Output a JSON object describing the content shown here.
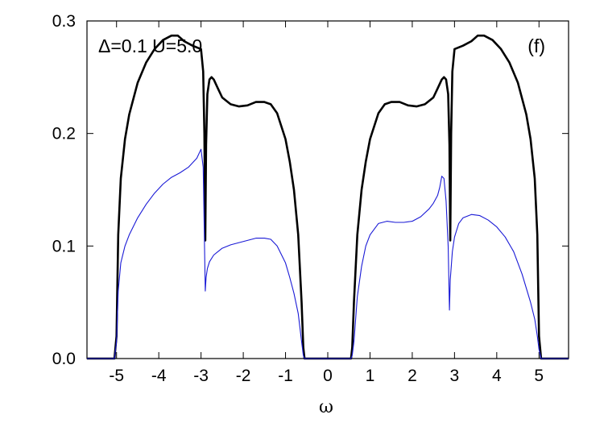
{
  "chart_data": {
    "type": "line",
    "xlabel": "ω",
    "ylabel": "",
    "xlim": [
      -5.7,
      5.7
    ],
    "ylim": [
      0.0,
      0.3
    ],
    "grid": false,
    "legend": "none",
    "annotation_left": "Δ=0.1  U=5.0",
    "annotation_right": "(f)",
    "x_ticks": [
      -5,
      -4,
      -3,
      -2,
      -1,
      0,
      1,
      2,
      3,
      4,
      5
    ],
    "x_tick_labels": [
      "-5",
      "-4",
      "-3",
      "-2",
      "-1",
      "0",
      "1",
      "2",
      "3",
      "4",
      "5"
    ],
    "y_ticks": [
      0.0,
      0.1,
      0.2,
      0.3
    ],
    "y_tick_labels": [
      "0.0",
      "0.1",
      "0.2",
      "0.3"
    ],
    "series": [
      {
        "color": "#000000",
        "x": [
          -5.7,
          -5.05,
          -5.0,
          -4.96,
          -4.9,
          -4.8,
          -4.7,
          -4.5,
          -4.3,
          -4.1,
          -3.9,
          -3.7,
          -3.55,
          -3.4,
          -3.2,
          -3.0,
          -2.95,
          -2.92,
          -2.9,
          -2.88,
          -2.85,
          -2.8,
          -2.75,
          -2.7,
          -2.6,
          -2.5,
          -2.3,
          -2.1,
          -1.9,
          -1.7,
          -1.5,
          -1.35,
          -1.2,
          -1.0,
          -0.9,
          -0.8,
          -0.7,
          -0.62,
          -0.58,
          -0.55,
          -0.5,
          0.5,
          0.55,
          0.58,
          0.62,
          0.7,
          0.8,
          0.9,
          1.0,
          1.2,
          1.35,
          1.5,
          1.7,
          1.9,
          2.1,
          2.3,
          2.5,
          2.6,
          2.7,
          2.75,
          2.8,
          2.85,
          2.88,
          2.9,
          2.92,
          2.95,
          3.0,
          3.2,
          3.4,
          3.55,
          3.7,
          3.9,
          4.1,
          4.3,
          4.5,
          4.7,
          4.8,
          4.9,
          4.96,
          5.0,
          5.05,
          5.7
        ],
        "y": [
          0.0,
          0.0,
          0.02,
          0.11,
          0.16,
          0.195,
          0.217,
          0.245,
          0.263,
          0.275,
          0.283,
          0.287,
          0.287,
          0.282,
          0.278,
          0.275,
          0.255,
          0.2,
          0.105,
          0.19,
          0.235,
          0.248,
          0.25,
          0.248,
          0.24,
          0.232,
          0.226,
          0.224,
          0.225,
          0.228,
          0.228,
          0.226,
          0.218,
          0.195,
          0.175,
          0.15,
          0.11,
          0.05,
          0.01,
          0.0,
          0.0,
          0.0,
          0.0,
          0.01,
          0.05,
          0.11,
          0.15,
          0.175,
          0.195,
          0.218,
          0.226,
          0.228,
          0.228,
          0.225,
          0.224,
          0.226,
          0.232,
          0.24,
          0.248,
          0.25,
          0.248,
          0.235,
          0.19,
          0.105,
          0.2,
          0.255,
          0.275,
          0.278,
          0.282,
          0.287,
          0.287,
          0.283,
          0.275,
          0.263,
          0.245,
          0.217,
          0.195,
          0.16,
          0.11,
          0.02,
          0.0,
          0.0
        ]
      },
      {
        "color": "#1a1ad6",
        "x": [
          -5.7,
          -5.05,
          -5.0,
          -4.96,
          -4.9,
          -4.8,
          -4.7,
          -4.5,
          -4.3,
          -4.1,
          -3.9,
          -3.7,
          -3.5,
          -3.3,
          -3.1,
          -3.0,
          -2.95,
          -2.9,
          -2.88,
          -2.85,
          -2.8,
          -2.7,
          -2.6,
          -2.5,
          -2.3,
          -2.1,
          -1.9,
          -1.7,
          -1.5,
          -1.35,
          -1.2,
          -1.0,
          -0.9,
          -0.8,
          -0.7,
          -0.62,
          -0.58,
          -0.55,
          -0.5,
          0.5,
          0.55,
          0.58,
          0.62,
          0.7,
          0.8,
          0.9,
          1.0,
          1.2,
          1.4,
          1.6,
          1.8,
          2.0,
          2.2,
          2.4,
          2.5,
          2.6,
          2.65,
          2.7,
          2.75,
          2.8,
          2.85,
          2.88,
          2.9,
          2.95,
          3.0,
          3.1,
          3.2,
          3.4,
          3.6,
          3.8,
          4.0,
          4.2,
          4.4,
          4.6,
          4.8,
          4.9,
          4.96,
          5.0,
          5.05,
          5.7
        ],
        "y": [
          0.0,
          0.0,
          0.015,
          0.06,
          0.085,
          0.1,
          0.11,
          0.125,
          0.137,
          0.147,
          0.155,
          0.161,
          0.165,
          0.17,
          0.178,
          0.186,
          0.17,
          0.06,
          0.072,
          0.08,
          0.086,
          0.092,
          0.095,
          0.098,
          0.101,
          0.103,
          0.105,
          0.107,
          0.107,
          0.106,
          0.1,
          0.085,
          0.072,
          0.058,
          0.04,
          0.015,
          0.003,
          0.0,
          0.0,
          0.0,
          0.0,
          0.003,
          0.015,
          0.055,
          0.082,
          0.1,
          0.11,
          0.12,
          0.122,
          0.121,
          0.121,
          0.122,
          0.126,
          0.133,
          0.138,
          0.145,
          0.152,
          0.162,
          0.16,
          0.14,
          0.1,
          0.043,
          0.07,
          0.095,
          0.108,
          0.12,
          0.125,
          0.128,
          0.127,
          0.123,
          0.117,
          0.108,
          0.095,
          0.075,
          0.05,
          0.035,
          0.02,
          0.008,
          0.0,
          0.0
        ]
      }
    ]
  }
}
